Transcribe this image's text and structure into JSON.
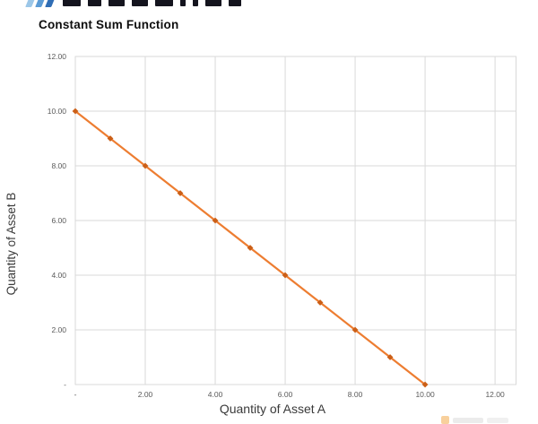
{
  "brand": {
    "icon": "triple-slash-icon",
    "slash_colors": [
      "#9cc7e8",
      "#5b9bd5",
      "#2f6db5"
    ],
    "wordmark_color": "#14141e"
  },
  "chart_data": {
    "type": "line",
    "title": "Constant Sum Function",
    "xlabel": "Quantity of Asset A",
    "ylabel": "Quantity of Asset B",
    "x": [
      0,
      1,
      2,
      3,
      4,
      5,
      6,
      7,
      8,
      9,
      10
    ],
    "y": [
      10,
      9,
      8,
      7,
      6,
      5,
      4,
      3,
      2,
      1,
      0
    ],
    "xlim": [
      0,
      12.6
    ],
    "ylim": [
      0,
      12
    ],
    "x_ticks": {
      "values": [
        0,
        2,
        4,
        6,
        8,
        10,
        12
      ],
      "labels": [
        "-",
        "2.00",
        "4.00",
        "6.00",
        "8.00",
        "10.00",
        "12.00"
      ]
    },
    "y_ticks": {
      "values": [
        0,
        2,
        4,
        6,
        8,
        10,
        12
      ],
      "labels": [
        "-",
        "2.00",
        "4.00",
        "6.00",
        "8.00",
        "10.00",
        "12.00"
      ]
    },
    "grid": true,
    "legend": "none",
    "line_color": "#ED7D31",
    "marker": "diamond",
    "marker_color": "#CB5F17",
    "grid_color": "#D9D9D9",
    "plot_border_color": "#D9D9D9",
    "tick_color": "#595959"
  },
  "watermark": {
    "accent_color": "#F2A33C"
  }
}
